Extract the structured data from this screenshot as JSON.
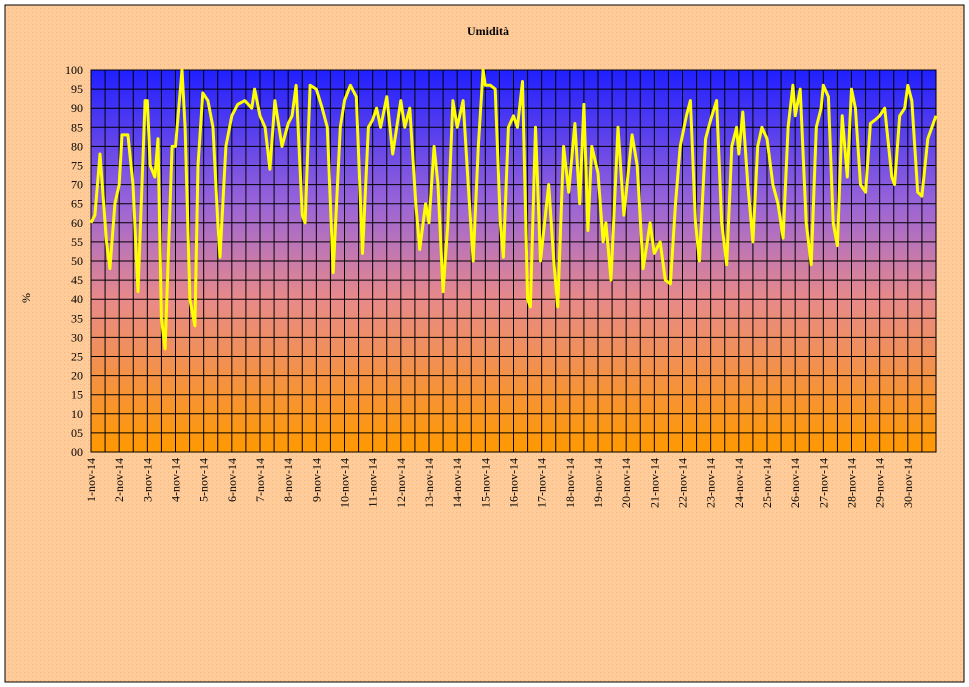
{
  "chart_data": {
    "type": "line",
    "title": "Umidità",
    "ylabel": "%",
    "color": "#ffff00",
    "grid": true,
    "x": [
      1,
      1.14,
      1.32,
      1.55,
      1.67,
      1.85,
      2,
      2.1,
      2.31,
      2.49,
      2.67,
      2.92,
      3,
      3.1,
      3.27,
      3.38,
      3.5,
      3.63,
      3.88,
      4,
      4.23,
      4.34,
      4.51,
      4.69,
      4.8,
      4.97,
      5.15,
      5.33,
      5.5,
      5.58,
      5.79,
      6,
      6.21,
      6.46,
      6.71,
      6.81,
      7,
      7.18,
      7.35,
      7.53,
      7.78,
      8,
      8.14,
      8.28,
      8.5,
      8.6,
      8.78,
      9,
      9.21,
      9.39,
      9.6,
      9.85,
      10,
      10.21,
      10.42,
      10.64,
      10.85,
      11,
      11.14,
      11.28,
      11.5,
      11.71,
      12,
      12.14,
      12.32,
      12.53,
      12.67,
      12.88,
      13,
      13.18,
      13.32,
      13.5,
      13.67,
      13.85,
      14,
      14.21,
      14.39,
      14.57,
      14.75,
      14.92,
      15,
      15.18,
      15.35,
      15.53,
      15.64,
      15.82,
      16,
      16.14,
      16.32,
      16.5,
      16.6,
      16.78,
      16.96,
      17.25,
      17.43,
      17.57,
      17.78,
      17.96,
      18.18,
      18.35,
      18.5,
      18.64,
      18.78,
      19,
      19.18,
      19.28,
      19.46,
      19.71,
      19.92,
      20.21,
      20.39,
      20.6,
      20.75,
      20.85,
      21,
      21.21,
      21.39,
      21.57,
      21.75,
      21.92,
      22.14,
      22.28,
      22.46,
      22.6,
      22.82,
      23,
      23.21,
      23.39,
      23.57,
      23.75,
      23.92,
      24,
      24.14,
      24.32,
      24.5,
      24.67,
      24.82,
      25,
      25.21,
      25.39,
      25.57,
      25.75,
      25.92,
      26,
      26.18,
      26.39,
      26.57,
      26.75,
      26.92,
      27,
      27.18,
      27.35,
      27.5,
      27.67,
      27.85,
      28,
      28.14,
      28.32,
      28.5,
      28.67,
      28.85,
      29,
      29.18,
      29.43,
      29.53,
      29.71,
      29.89,
      30,
      30.14,
      30.35,
      30.5,
      30.71,
      31
    ],
    "values": [
      60,
      62,
      78,
      55,
      48,
      65,
      70,
      83,
      83,
      70,
      42,
      92,
      92,
      75,
      72,
      82,
      35,
      27,
      80,
      80,
      100,
      85,
      40,
      33,
      75,
      94,
      92,
      85,
      60,
      51,
      80,
      88,
      91,
      92,
      90,
      95,
      88,
      85,
      74,
      92,
      80,
      86,
      88,
      96,
      62,
      60,
      96,
      95,
      90,
      85,
      47,
      85,
      92,
      96,
      93,
      52,
      85,
      87,
      90,
      85,
      93,
      78,
      92,
      85,
      90,
      65,
      53,
      65,
      60,
      80,
      70,
      42,
      60,
      92,
      85,
      92,
      70,
      50,
      80,
      100,
      96,
      96,
      95,
      60,
      51,
      85,
      88,
      85,
      97,
      40,
      38,
      85,
      50,
      70,
      50,
      38,
      80,
      68,
      86,
      65,
      91,
      58,
      80,
      73,
      55,
      60,
      45,
      85,
      62,
      83,
      75,
      48,
      55,
      60,
      52,
      55,
      45,
      44,
      65,
      80,
      88,
      92,
      60,
      50,
      82,
      87,
      92,
      60,
      49,
      80,
      85,
      78,
      89,
      70,
      55,
      80,
      85,
      82,
      70,
      65,
      56,
      85,
      96,
      88,
      95,
      60,
      49,
      85,
      90,
      96,
      93,
      60,
      54,
      88,
      72,
      95,
      90,
      70,
      68,
      86,
      87,
      88,
      90,
      72,
      70,
      88,
      90,
      96,
      92,
      68,
      67,
      82,
      88
    ],
    "xlim": [
      1,
      31
    ],
    "xticks": [
      {
        "value": 1,
        "label": "1-nov-14"
      },
      {
        "value": 2,
        "label": "2-nov-14"
      },
      {
        "value": 3,
        "label": "3-nov-14"
      },
      {
        "value": 4,
        "label": "4-nov-14"
      },
      {
        "value": 5,
        "label": "5-nov-14"
      },
      {
        "value": 6,
        "label": "6-nov-14"
      },
      {
        "value": 7,
        "label": "7-nov-14"
      },
      {
        "value": 8,
        "label": "8-nov-14"
      },
      {
        "value": 9,
        "label": "9-nov-14"
      },
      {
        "value": 10,
        "label": "10-nov-14"
      },
      {
        "value": 11,
        "label": "11-nov-14"
      },
      {
        "value": 12,
        "label": "12-nov-14"
      },
      {
        "value": 13,
        "label": "13-nov-14"
      },
      {
        "value": 14,
        "label": "14-nov-14"
      },
      {
        "value": 15,
        "label": "15-nov-14"
      },
      {
        "value": 16,
        "label": "16-nov-14"
      },
      {
        "value": 17,
        "label": "17-nov-14"
      },
      {
        "value": 18,
        "label": "18-nov-14"
      },
      {
        "value": 19,
        "label": "19-nov-14"
      },
      {
        "value": 20,
        "label": "20-nov-14"
      },
      {
        "value": 21,
        "label": "21-nov-14"
      },
      {
        "value": 22,
        "label": "22-nov-14"
      },
      {
        "value": 23,
        "label": "23-nov-14"
      },
      {
        "value": 24,
        "label": "24-nov-14"
      },
      {
        "value": 25,
        "label": "25-nov-14"
      },
      {
        "value": 26,
        "label": "26-nov-14"
      },
      {
        "value": 27,
        "label": "27-nov-14"
      },
      {
        "value": 28,
        "label": "28-nov-14"
      },
      {
        "value": 29,
        "label": "29-nov-14"
      },
      {
        "value": 30,
        "label": "30-nov-14"
      }
    ],
    "ylim": [
      0,
      100
    ],
    "yticks": [
      {
        "value": 0,
        "label": "00"
      },
      {
        "value": 5,
        "label": "05"
      },
      10,
      15,
      20,
      25,
      30,
      35,
      40,
      45,
      50,
      55,
      60,
      65,
      70,
      75,
      80,
      85,
      90,
      95,
      100
    ]
  }
}
